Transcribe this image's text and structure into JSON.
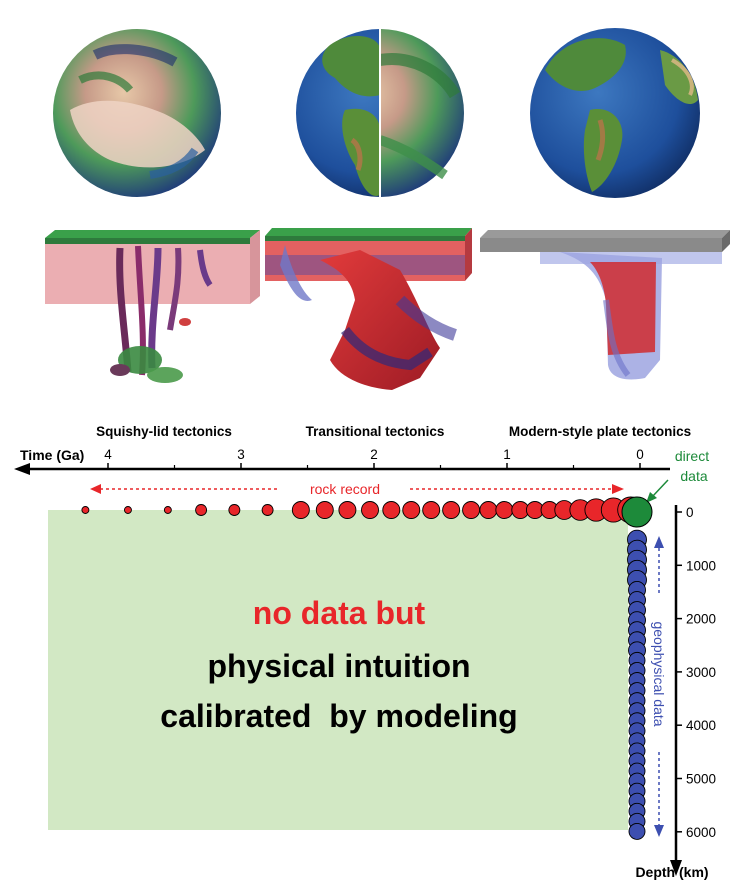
{
  "panels": [
    {
      "label": "Squishy-lid tectonics"
    },
    {
      "label": "Transitional tectonics"
    },
    {
      "label": "Modern-style plate tectonics"
    }
  ],
  "time_axis": {
    "label": "Time (Ga)",
    "ticks": [
      "4",
      "3",
      "2",
      "1",
      "0"
    ]
  },
  "depth_axis": {
    "label": "Depth (km)",
    "ticks": [
      "0",
      "1000",
      "2000",
      "3000",
      "4000",
      "5000",
      "6000"
    ]
  },
  "annotations": {
    "rock_record": "rock record",
    "direct_data_line1": "direct",
    "direct_data_line2": "data",
    "geophysical_data": "geophysical data"
  },
  "center_text": {
    "line1": "no data but",
    "line2": "physical intuition",
    "line3": "calibrated  by modeling"
  },
  "colors": {
    "rock_record": "#e8262a",
    "direct_data": "#1d8a3a",
    "geophysical": "#3d4fb0",
    "model_box": "#d2e8c4"
  },
  "rock_record_points_ga": [
    4.17,
    3.85,
    3.55,
    3.3,
    3.05,
    2.8,
    2.55,
    2.37,
    2.2,
    2.03,
    1.87,
    1.72,
    1.57,
    1.42,
    1.27,
    1.14,
    1.02,
    0.9,
    0.79,
    0.68,
    0.57,
    0.45,
    0.33,
    0.2,
    0.07
  ],
  "geophysical_points_km": [
    200,
    400,
    600,
    800,
    1000,
    1200,
    1400,
    1600,
    1800,
    2000,
    2200,
    2400,
    2600,
    2800,
    3000,
    3200,
    3400,
    3600,
    3800,
    4000,
    4200,
    4400,
    4600,
    4800,
    5000,
    5200,
    5400,
    5600,
    5800,
    6000
  ]
}
